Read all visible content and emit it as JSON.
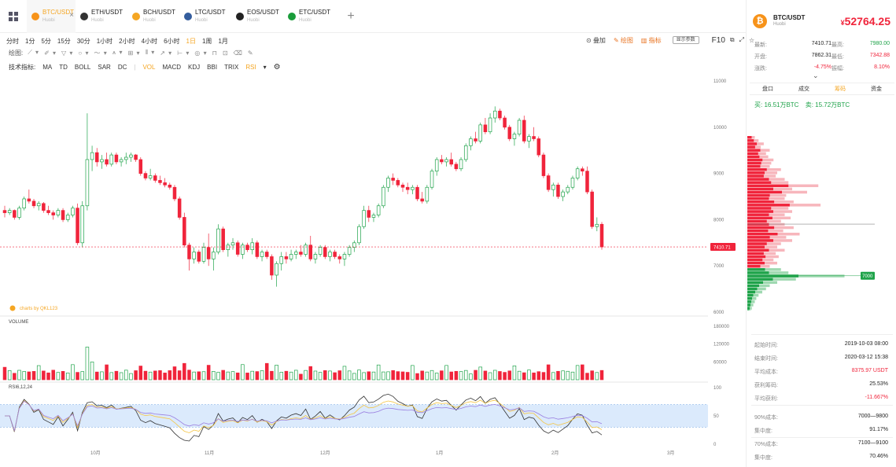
{
  "tabs": [
    {
      "symbol": "BTC/USDT",
      "exchange": "Huobi",
      "active": true,
      "coin_color": "#f7931a"
    },
    {
      "symbol": "ETH/USDT",
      "exchange": "Huobi",
      "active": false,
      "coin_color": "#333333"
    },
    {
      "symbol": "BCH/USDT",
      "exchange": "Huobi",
      "active": false,
      "coin_color": "#f5a623"
    },
    {
      "symbol": "LTC/USDT",
      "exchange": "Huobi",
      "active": false,
      "coin_color": "#345d9d"
    },
    {
      "symbol": "EOS/USDT",
      "exchange": "Huobi",
      "active": false,
      "coin_color": "#222222"
    },
    {
      "symbol": "ETC/USDT",
      "exchange": "Huobi",
      "active": false,
      "coin_color": "#1a9c3a"
    }
  ],
  "add_tab": "+",
  "periods": [
    "分时",
    "1分",
    "5分",
    "15分",
    "30分",
    "1小时",
    "2小时",
    "4小时",
    "6小时",
    "1日",
    "1周",
    "1月"
  ],
  "active_period": "1日",
  "toolbar_right": {
    "overlay": "叠加",
    "draw": "绘图",
    "indicator": "指标",
    "settings_box": "显示参数",
    "f10": "F10"
  },
  "draw_label": "绘图:",
  "indicators_label": "技术指标:",
  "indicators": [
    "MA",
    "TD",
    "BOLL",
    "SAR",
    "DC",
    "|",
    "VOL",
    "MACD",
    "KDJ",
    "BBI",
    "TRIX",
    "RSI"
  ],
  "watermark": "charts by QKL123",
  "volume_label": "VOLUME",
  "rsi_label": "RSI6,12,24",
  "chart_data": {
    "type": "candlestick",
    "x_ticks": [
      "10月",
      "11月",
      "12月",
      "1月",
      "2月",
      "3月"
    ],
    "price_ticks": [
      "11000",
      "10000",
      "9000",
      "8000",
      "7000",
      "6000"
    ],
    "price_range": [
      6000,
      11000
    ],
    "volume_ticks": [
      "180000",
      "120000",
      "60000"
    ],
    "rsi_ticks": [
      "100",
      "50",
      "0"
    ],
    "last_price_tag": "7410.71",
    "depth_tag": "7000",
    "colors": {
      "up": "#1fa34a",
      "down": "#f0243b"
    },
    "candles": [
      {
        "o": 8200,
        "h": 8300,
        "l": 8050,
        "c": 8150
      },
      {
        "o": 8150,
        "h": 8250,
        "l": 8100,
        "c": 8200
      },
      {
        "o": 8200,
        "h": 8220,
        "l": 8000,
        "c": 8050
      },
      {
        "o": 8050,
        "h": 8300,
        "l": 8000,
        "c": 8250
      },
      {
        "o": 8250,
        "h": 8500,
        "l": 8200,
        "c": 8450
      },
      {
        "o": 8450,
        "h": 8650,
        "l": 8350,
        "c": 8400
      },
      {
        "o": 8400,
        "h": 8450,
        "l": 8250,
        "c": 8300
      },
      {
        "o": 8300,
        "h": 8400,
        "l": 8200,
        "c": 8350
      },
      {
        "o": 8350,
        "h": 8380,
        "l": 8150,
        "c": 8200
      },
      {
        "o": 8200,
        "h": 8300,
        "l": 8100,
        "c": 8150
      },
      {
        "o": 8150,
        "h": 8200,
        "l": 8000,
        "c": 8100
      },
      {
        "o": 8100,
        "h": 8250,
        "l": 8050,
        "c": 8200
      },
      {
        "o": 8200,
        "h": 8250,
        "l": 7950,
        "c": 8000
      },
      {
        "o": 8000,
        "h": 8150,
        "l": 7950,
        "c": 8100
      },
      {
        "o": 8100,
        "h": 8300,
        "l": 8050,
        "c": 8250
      },
      {
        "o": 8250,
        "h": 8350,
        "l": 7450,
        "c": 7500
      },
      {
        "o": 7500,
        "h": 8400,
        "l": 7400,
        "c": 8300
      },
      {
        "o": 8300,
        "h": 10300,
        "l": 8200,
        "c": 9300
      },
      {
        "o": 9300,
        "h": 9600,
        "l": 9050,
        "c": 9450
      },
      {
        "o": 9450,
        "h": 9550,
        "l": 9150,
        "c": 9250
      },
      {
        "o": 9250,
        "h": 9400,
        "l": 9100,
        "c": 9300
      },
      {
        "o": 9300,
        "h": 9450,
        "l": 9150,
        "c": 9200
      },
      {
        "o": 9200,
        "h": 9450,
        "l": 9150,
        "c": 9400
      },
      {
        "o": 9400,
        "h": 9450,
        "l": 9200,
        "c": 9250
      },
      {
        "o": 9250,
        "h": 9350,
        "l": 9150,
        "c": 9300
      },
      {
        "o": 9300,
        "h": 9450,
        "l": 9200,
        "c": 9350
      },
      {
        "o": 9350,
        "h": 9450,
        "l": 9250,
        "c": 9400
      },
      {
        "o": 9400,
        "h": 9420,
        "l": 9250,
        "c": 9300
      },
      {
        "o": 9300,
        "h": 9350,
        "l": 8950,
        "c": 9000
      },
      {
        "o": 9000,
        "h": 9050,
        "l": 8850,
        "c": 8900
      },
      {
        "o": 8900,
        "h": 9100,
        "l": 8850,
        "c": 8950
      },
      {
        "o": 8950,
        "h": 9000,
        "l": 8800,
        "c": 8850
      },
      {
        "o": 8850,
        "h": 8950,
        "l": 8750,
        "c": 8800
      },
      {
        "o": 8800,
        "h": 8900,
        "l": 8700,
        "c": 8750
      },
      {
        "o": 8750,
        "h": 8800,
        "l": 8650,
        "c": 8700
      },
      {
        "o": 8700,
        "h": 8750,
        "l": 8400,
        "c": 8450
      },
      {
        "o": 8450,
        "h": 8500,
        "l": 8000,
        "c": 8050
      },
      {
        "o": 8050,
        "h": 8150,
        "l": 7400,
        "c": 7450
      },
      {
        "o": 7450,
        "h": 7500,
        "l": 6900,
        "c": 7150
      },
      {
        "o": 7150,
        "h": 7400,
        "l": 7050,
        "c": 7300
      },
      {
        "o": 7300,
        "h": 7350,
        "l": 7050,
        "c": 7100
      },
      {
        "o": 7100,
        "h": 7500,
        "l": 7050,
        "c": 7400
      },
      {
        "o": 7400,
        "h": 7700,
        "l": 7000,
        "c": 7150
      },
      {
        "o": 7150,
        "h": 7400,
        "l": 6900,
        "c": 7300
      },
      {
        "o": 7300,
        "h": 7900,
        "l": 7250,
        "c": 7800
      },
      {
        "o": 7800,
        "h": 7850,
        "l": 7300,
        "c": 7350
      },
      {
        "o": 7350,
        "h": 7500,
        "l": 7200,
        "c": 7450
      },
      {
        "o": 7450,
        "h": 7600,
        "l": 7350,
        "c": 7500
      },
      {
        "o": 7500,
        "h": 7550,
        "l": 7200,
        "c": 7250
      },
      {
        "o": 7250,
        "h": 7500,
        "l": 7150,
        "c": 7450
      },
      {
        "o": 7450,
        "h": 7500,
        "l": 7300,
        "c": 7350
      },
      {
        "o": 7350,
        "h": 7600,
        "l": 7250,
        "c": 7500
      },
      {
        "o": 7500,
        "h": 7550,
        "l": 7150,
        "c": 7200
      },
      {
        "o": 7200,
        "h": 7350,
        "l": 7100,
        "c": 7300
      },
      {
        "o": 7300,
        "h": 7350,
        "l": 7150,
        "c": 7200
      },
      {
        "o": 7200,
        "h": 7250,
        "l": 6700,
        "c": 6800
      },
      {
        "o": 6800,
        "h": 7100,
        "l": 6550,
        "c": 7050
      },
      {
        "o": 7050,
        "h": 7300,
        "l": 6900,
        "c": 7200
      },
      {
        "o": 7200,
        "h": 7300,
        "l": 7050,
        "c": 7150
      },
      {
        "o": 7150,
        "h": 7350,
        "l": 7100,
        "c": 7250
      },
      {
        "o": 7250,
        "h": 7350,
        "l": 7150,
        "c": 7300
      },
      {
        "o": 7300,
        "h": 7450,
        "l": 7200,
        "c": 7250
      },
      {
        "o": 7250,
        "h": 7500,
        "l": 7200,
        "c": 7450
      },
      {
        "o": 7450,
        "h": 7650,
        "l": 7100,
        "c": 7150
      },
      {
        "o": 7150,
        "h": 7300,
        "l": 7050,
        "c": 7250
      },
      {
        "o": 7250,
        "h": 7450,
        "l": 7200,
        "c": 7400
      },
      {
        "o": 7400,
        "h": 7450,
        "l": 7150,
        "c": 7200
      },
      {
        "o": 7200,
        "h": 7350,
        "l": 7100,
        "c": 7300
      },
      {
        "o": 7300,
        "h": 7350,
        "l": 7150,
        "c": 7200
      },
      {
        "o": 7200,
        "h": 7250,
        "l": 7050,
        "c": 7150
      },
      {
        "o": 7150,
        "h": 7300,
        "l": 7000,
        "c": 7250
      },
      {
        "o": 7250,
        "h": 7450,
        "l": 7200,
        "c": 7400
      },
      {
        "o": 7400,
        "h": 7550,
        "l": 7300,
        "c": 7500
      },
      {
        "o": 7500,
        "h": 7900,
        "l": 7450,
        "c": 7850
      },
      {
        "o": 7850,
        "h": 8300,
        "l": 7800,
        "c": 8200
      },
      {
        "o": 8200,
        "h": 8300,
        "l": 7950,
        "c": 8050
      },
      {
        "o": 8050,
        "h": 8150,
        "l": 7950,
        "c": 8100
      },
      {
        "o": 8100,
        "h": 8350,
        "l": 8050,
        "c": 8300
      },
      {
        "o": 8300,
        "h": 8750,
        "l": 8250,
        "c": 8700
      },
      {
        "o": 8700,
        "h": 8950,
        "l": 8600,
        "c": 8900
      },
      {
        "o": 8900,
        "h": 9000,
        "l": 8750,
        "c": 8850
      },
      {
        "o": 8850,
        "h": 8900,
        "l": 8700,
        "c": 8750
      },
      {
        "o": 8750,
        "h": 8800,
        "l": 8600,
        "c": 8700
      },
      {
        "o": 8700,
        "h": 8800,
        "l": 8550,
        "c": 8650
      },
      {
        "o": 8650,
        "h": 8750,
        "l": 8550,
        "c": 8700
      },
      {
        "o": 8700,
        "h": 8750,
        "l": 8400,
        "c": 8450
      },
      {
        "o": 8450,
        "h": 8600,
        "l": 8350,
        "c": 8400
      },
      {
        "o": 8400,
        "h": 8750,
        "l": 8350,
        "c": 8700
      },
      {
        "o": 8700,
        "h": 9100,
        "l": 8650,
        "c": 9050
      },
      {
        "o": 9050,
        "h": 9350,
        "l": 8950,
        "c": 9300
      },
      {
        "o": 9300,
        "h": 9400,
        "l": 9200,
        "c": 9250
      },
      {
        "o": 9250,
        "h": 9350,
        "l": 9150,
        "c": 9300
      },
      {
        "o": 9300,
        "h": 9450,
        "l": 9150,
        "c": 9200
      },
      {
        "o": 9200,
        "h": 9250,
        "l": 9050,
        "c": 9100
      },
      {
        "o": 9100,
        "h": 9350,
        "l": 9050,
        "c": 9300
      },
      {
        "o": 9300,
        "h": 9650,
        "l": 9250,
        "c": 9600
      },
      {
        "o": 9600,
        "h": 9800,
        "l": 9500,
        "c": 9750
      },
      {
        "o": 9750,
        "h": 9900,
        "l": 9650,
        "c": 9700
      },
      {
        "o": 9700,
        "h": 10100,
        "l": 9650,
        "c": 10050
      },
      {
        "o": 10050,
        "h": 10200,
        "l": 9850,
        "c": 9900
      },
      {
        "o": 9900,
        "h": 10300,
        "l": 9850,
        "c": 10200
      },
      {
        "o": 10200,
        "h": 10450,
        "l": 10100,
        "c": 10350
      },
      {
        "o": 10350,
        "h": 10400,
        "l": 10150,
        "c": 10200
      },
      {
        "o": 10200,
        "h": 10250,
        "l": 9950,
        "c": 10000
      },
      {
        "o": 10000,
        "h": 10050,
        "l": 9700,
        "c": 9750
      },
      {
        "o": 9750,
        "h": 9900,
        "l": 9600,
        "c": 9850
      },
      {
        "o": 9850,
        "h": 10200,
        "l": 9800,
        "c": 10150
      },
      {
        "o": 10150,
        "h": 10250,
        "l": 9650,
        "c": 9700
      },
      {
        "o": 9700,
        "h": 9850,
        "l": 9550,
        "c": 9800
      },
      {
        "o": 9800,
        "h": 10000,
        "l": 9700,
        "c": 9750
      },
      {
        "o": 9750,
        "h": 9800,
        "l": 9350,
        "c": 9400
      },
      {
        "o": 9400,
        "h": 9450,
        "l": 8900,
        "c": 8950
      },
      {
        "o": 8950,
        "h": 9000,
        "l": 8600,
        "c": 8650
      },
      {
        "o": 8650,
        "h": 8800,
        "l": 8500,
        "c": 8750
      },
      {
        "o": 8750,
        "h": 8800,
        "l": 8450,
        "c": 8500
      },
      {
        "o": 8500,
        "h": 8650,
        "l": 8400,
        "c": 8600
      },
      {
        "o": 8600,
        "h": 8750,
        "l": 8550,
        "c": 8700
      },
      {
        "o": 8700,
        "h": 8950,
        "l": 8650,
        "c": 8900
      },
      {
        "o": 8900,
        "h": 9150,
        "l": 8850,
        "c": 9100
      },
      {
        "o": 9100,
        "h": 9150,
        "l": 8950,
        "c": 9050
      },
      {
        "o": 9050,
        "h": 9150,
        "l": 8550,
        "c": 8600
      },
      {
        "o": 8600,
        "h": 8650,
        "l": 7800,
        "c": 7850
      },
      {
        "o": 7850,
        "h": 8050,
        "l": 7750,
        "c": 7900
      },
      {
        "o": 7900,
        "h": 7950,
        "l": 7350,
        "c": 7410
      }
    ],
    "depth_asks": [
      0.1,
      0.15,
      0.22,
      0.18,
      0.3,
      0.25,
      0.28,
      0.35,
      0.32,
      0.3,
      0.45,
      0.4,
      0.38,
      0.5,
      0.55,
      0.95,
      0.6,
      0.8,
      0.52,
      0.5,
      0.62,
      0.98,
      0.55,
      0.6,
      0.5,
      0.58,
      0.45,
      0.5,
      0.62,
      0.48,
      0.7,
      0.52,
      0.6,
      0.45,
      0.4,
      0.5,
      0.38,
      0.42,
      0.35,
      0.4,
      0.3
    ],
    "depth_bids": [
      0.45,
      0.55,
      1.3,
      0.65,
      0.4,
      0.3,
      0.25,
      0.2,
      0.15,
      0.12,
      0.1,
      0.08,
      0.06,
      0.05,
      0.04
    ],
    "depth_mid_line": 0.5
  },
  "right_panel": {
    "symbol": "BTC/USDT",
    "exchange": "Huobi",
    "price_currency": "¥",
    "price": "52764.25",
    "stats": [
      {
        "k1": "最新:",
        "v1": "7410.71",
        "k2": "最高:",
        "v2": "7980.00",
        "c2": "#1fa34a"
      },
      {
        "k1": "开盘:",
        "v1": "7862.31",
        "k2": "最低:",
        "v2": "7342.88",
        "c2": "#f0243b"
      },
      {
        "k1": "涨跌:",
        "v1": "-4.75%",
        "k2": "振幅:",
        "v2": "8.10%",
        "c1": "#f0243b",
        "c2": "#f0243b"
      }
    ],
    "order_tabs": [
      "盘口",
      "成交",
      "筹码",
      "资金"
    ],
    "active_tab": "筹码",
    "buy": "买: 16.51万BTC",
    "sell": "卖: 15.72万BTC",
    "chip_stats": [
      {
        "k": "起始时间:",
        "v": "2019-10-03 08:00"
      },
      {
        "k": "结束时间:",
        "v": "2020-03-12 15:38"
      },
      {
        "k": "平均成本:",
        "v": "8375.97 USDT",
        "red": true
      },
      {
        "k": "获利筹码:",
        "v": "25.53%"
      },
      {
        "k": "平均获利:",
        "v": "-11.667%",
        "red": true
      },
      {
        "k": "90%成本:",
        "v": "7000—9800"
      },
      {
        "k": "集中度:",
        "v": "91.17%"
      },
      {
        "k": "70%成本:",
        "v": "7100—9100"
      },
      {
        "k": "集中度:",
        "v": "70.46%"
      }
    ]
  }
}
